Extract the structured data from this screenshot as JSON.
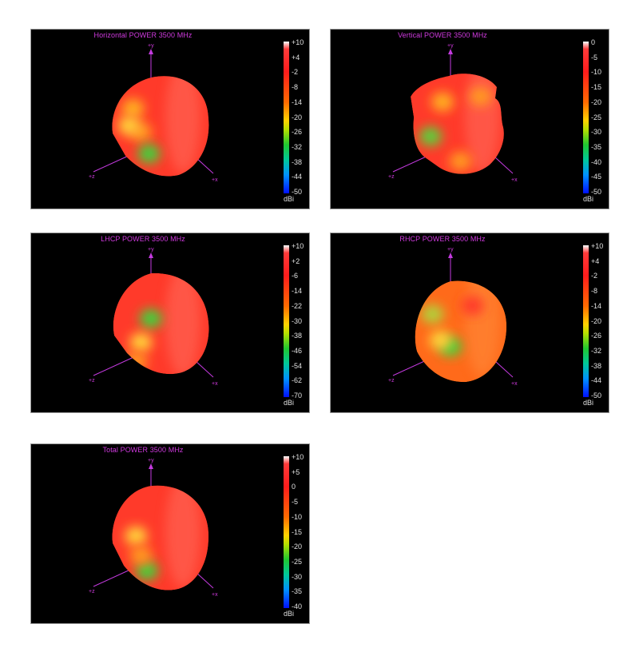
{
  "panels": [
    {
      "title": "Horizontal POWER 3500  MHz",
      "scale": [
        "+10",
        "+4",
        "-2",
        "-8",
        "-14",
        "-20",
        "-26",
        "-32",
        "-38",
        "-44",
        "-50"
      ],
      "unit": "dBi",
      "blob": {
        "main": "#ff3a2a",
        "light": "#ff6a5a",
        "hot": [
          [
            0.3,
            0.58,
            "#ff9a20"
          ],
          [
            0.22,
            0.36,
            "#ffb020"
          ],
          [
            0.38,
            0.78,
            "#3fd23a"
          ],
          [
            0.18,
            0.52,
            "#ffd23a"
          ]
        ]
      }
    },
    {
      "title": "Vertical POWER 3500  MHz",
      "scale": [
        "0",
        "-5",
        "-10",
        "-15",
        "-20",
        "-25",
        "-30",
        "-35",
        "-40",
        "-45",
        "-50"
      ],
      "unit": "dBi",
      "blob": {
        "main": "#ff3a2a",
        "light": "#ff6a5a",
        "hot": [
          [
            0.2,
            0.62,
            "#58d23a"
          ],
          [
            0.32,
            0.3,
            "#ffb020"
          ],
          [
            0.7,
            0.25,
            "#ff9a20"
          ],
          [
            0.5,
            0.85,
            "#ff9a20"
          ]
        ]
      }
    },
    {
      "title": "LHCP POWER 3500  MHz",
      "scale": [
        "+10",
        "+2",
        "-6",
        "-14",
        "-22",
        "-30",
        "-38",
        "-46",
        "-54",
        "-62",
        "-70"
      ],
      "unit": "dBi",
      "blob": {
        "main": "#ff3a2a",
        "light": "#ff6a5a",
        "hot": [
          [
            0.4,
            0.42,
            "#3fd23a"
          ],
          [
            0.3,
            0.64,
            "#ffd23a"
          ],
          [
            0.25,
            0.82,
            "#ff9a20"
          ]
        ]
      }
    },
    {
      "title": "RHCP POWER 3500  MHz",
      "scale": [
        "+10",
        "+4",
        "-2",
        "-8",
        "-14",
        "-20",
        "-26",
        "-32",
        "-38",
        "-44",
        "-50"
      ],
      "unit": "dBi",
      "blob": {
        "main": "#ff6a1a",
        "light": "#ff8a3a",
        "hot": [
          [
            0.4,
            0.68,
            "#3fd23a"
          ],
          [
            0.22,
            0.38,
            "#b0d23a"
          ],
          [
            0.3,
            0.62,
            "#ffd23a"
          ],
          [
            0.62,
            0.3,
            "#ff3a2a"
          ]
        ]
      }
    },
    {
      "title": "Total POWER 3500  MHz",
      "scale": [
        "+10",
        "+5",
        "0",
        "-5",
        "-10",
        "-15",
        "-20",
        "-25",
        "-30",
        "-35",
        "-40"
      ],
      "unit": "dBi",
      "blob": {
        "main": "#ff3a2a",
        "light": "#ff6a5a",
        "hot": [
          [
            0.36,
            0.8,
            "#3fd23a"
          ],
          [
            0.25,
            0.48,
            "#ffd23a"
          ],
          [
            0.3,
            0.66,
            "#ff9a20"
          ]
        ]
      }
    }
  ],
  "axes": {
    "y": "+y",
    "z": "+z",
    "x": "+x"
  }
}
